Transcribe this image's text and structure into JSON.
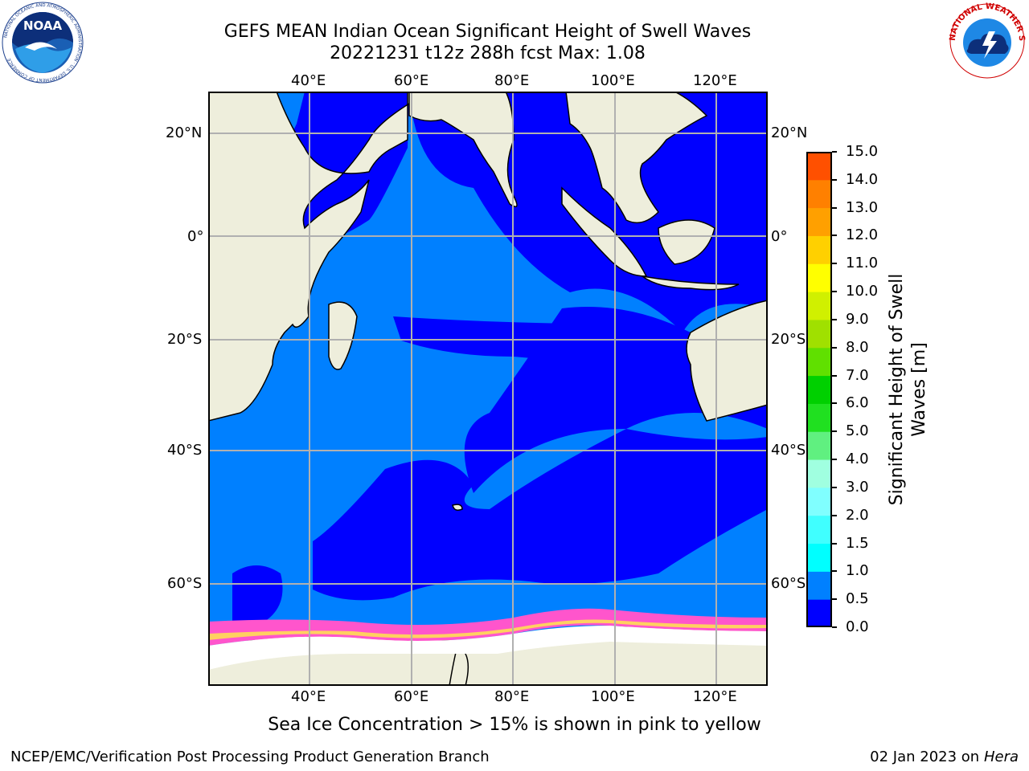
{
  "header": {
    "title_line1": "GEFS MEAN Indian Ocean Significant Height of Swell Waves",
    "title_line2": "20221231 t12z 288h fcst   Max: 1.08"
  },
  "logos": {
    "noaa": {
      "text": "NOAA",
      "ring_text": "NATIONAL OCEANIC AND ATMOSPHERIC ADMINISTRATION · U.S. DEPARTMENT OF COMMERCE"
    },
    "nws": {
      "ring_text": "NATIONAL WEATHER SERVICE"
    }
  },
  "map": {
    "lon_labels_top": [
      "40°E",
      "60°E",
      "80°E",
      "100°E",
      "120°E"
    ],
    "lon_labels_bottom": [
      "40°E",
      "60°E",
      "80°E",
      "100°E",
      "120°E"
    ],
    "lat_labels_left": [
      "20°N",
      "0°",
      "20°S",
      "40°S",
      "60°S"
    ],
    "lat_labels_right": [
      "20°N",
      "0°",
      "20°S",
      "40°S",
      "60°S"
    ],
    "colors": {
      "land": "#eeeedc",
      "ice_free_land": "#ffffff",
      "grid": "#b0b0b0",
      "coast": "#000000"
    }
  },
  "colorbar": {
    "title": "Significant Height of Swell Waves [m]",
    "ticks": [
      "0.0",
      "0.5",
      "1.0",
      "1.5",
      "2.0",
      "3.0",
      "4.0",
      "5.0",
      "6.0",
      "7.0",
      "8.0",
      "9.0",
      "10.0",
      "11.0",
      "12.0",
      "13.0",
      "14.0",
      "15.0"
    ],
    "colors": [
      "#0000ff",
      "#0080ff",
      "#00ffff",
      "#40ffff",
      "#80ffff",
      "#a0ffe0",
      "#60f080",
      "#20e020",
      "#00d000",
      "#60e000",
      "#a0e000",
      "#d0f000",
      "#ffff00",
      "#ffd000",
      "#ffa000",
      "#ff8000",
      "#ff5000",
      "#ff2000"
    ]
  },
  "ice_note": "Sea Ice Concentration > 15% is shown in pink to yellow",
  "footer": {
    "left": "NCEP/EMC/Verification Post Processing Product Generation Branch",
    "right_date": "02 Jan 2023 on ",
    "right_host": "Hera"
  }
}
